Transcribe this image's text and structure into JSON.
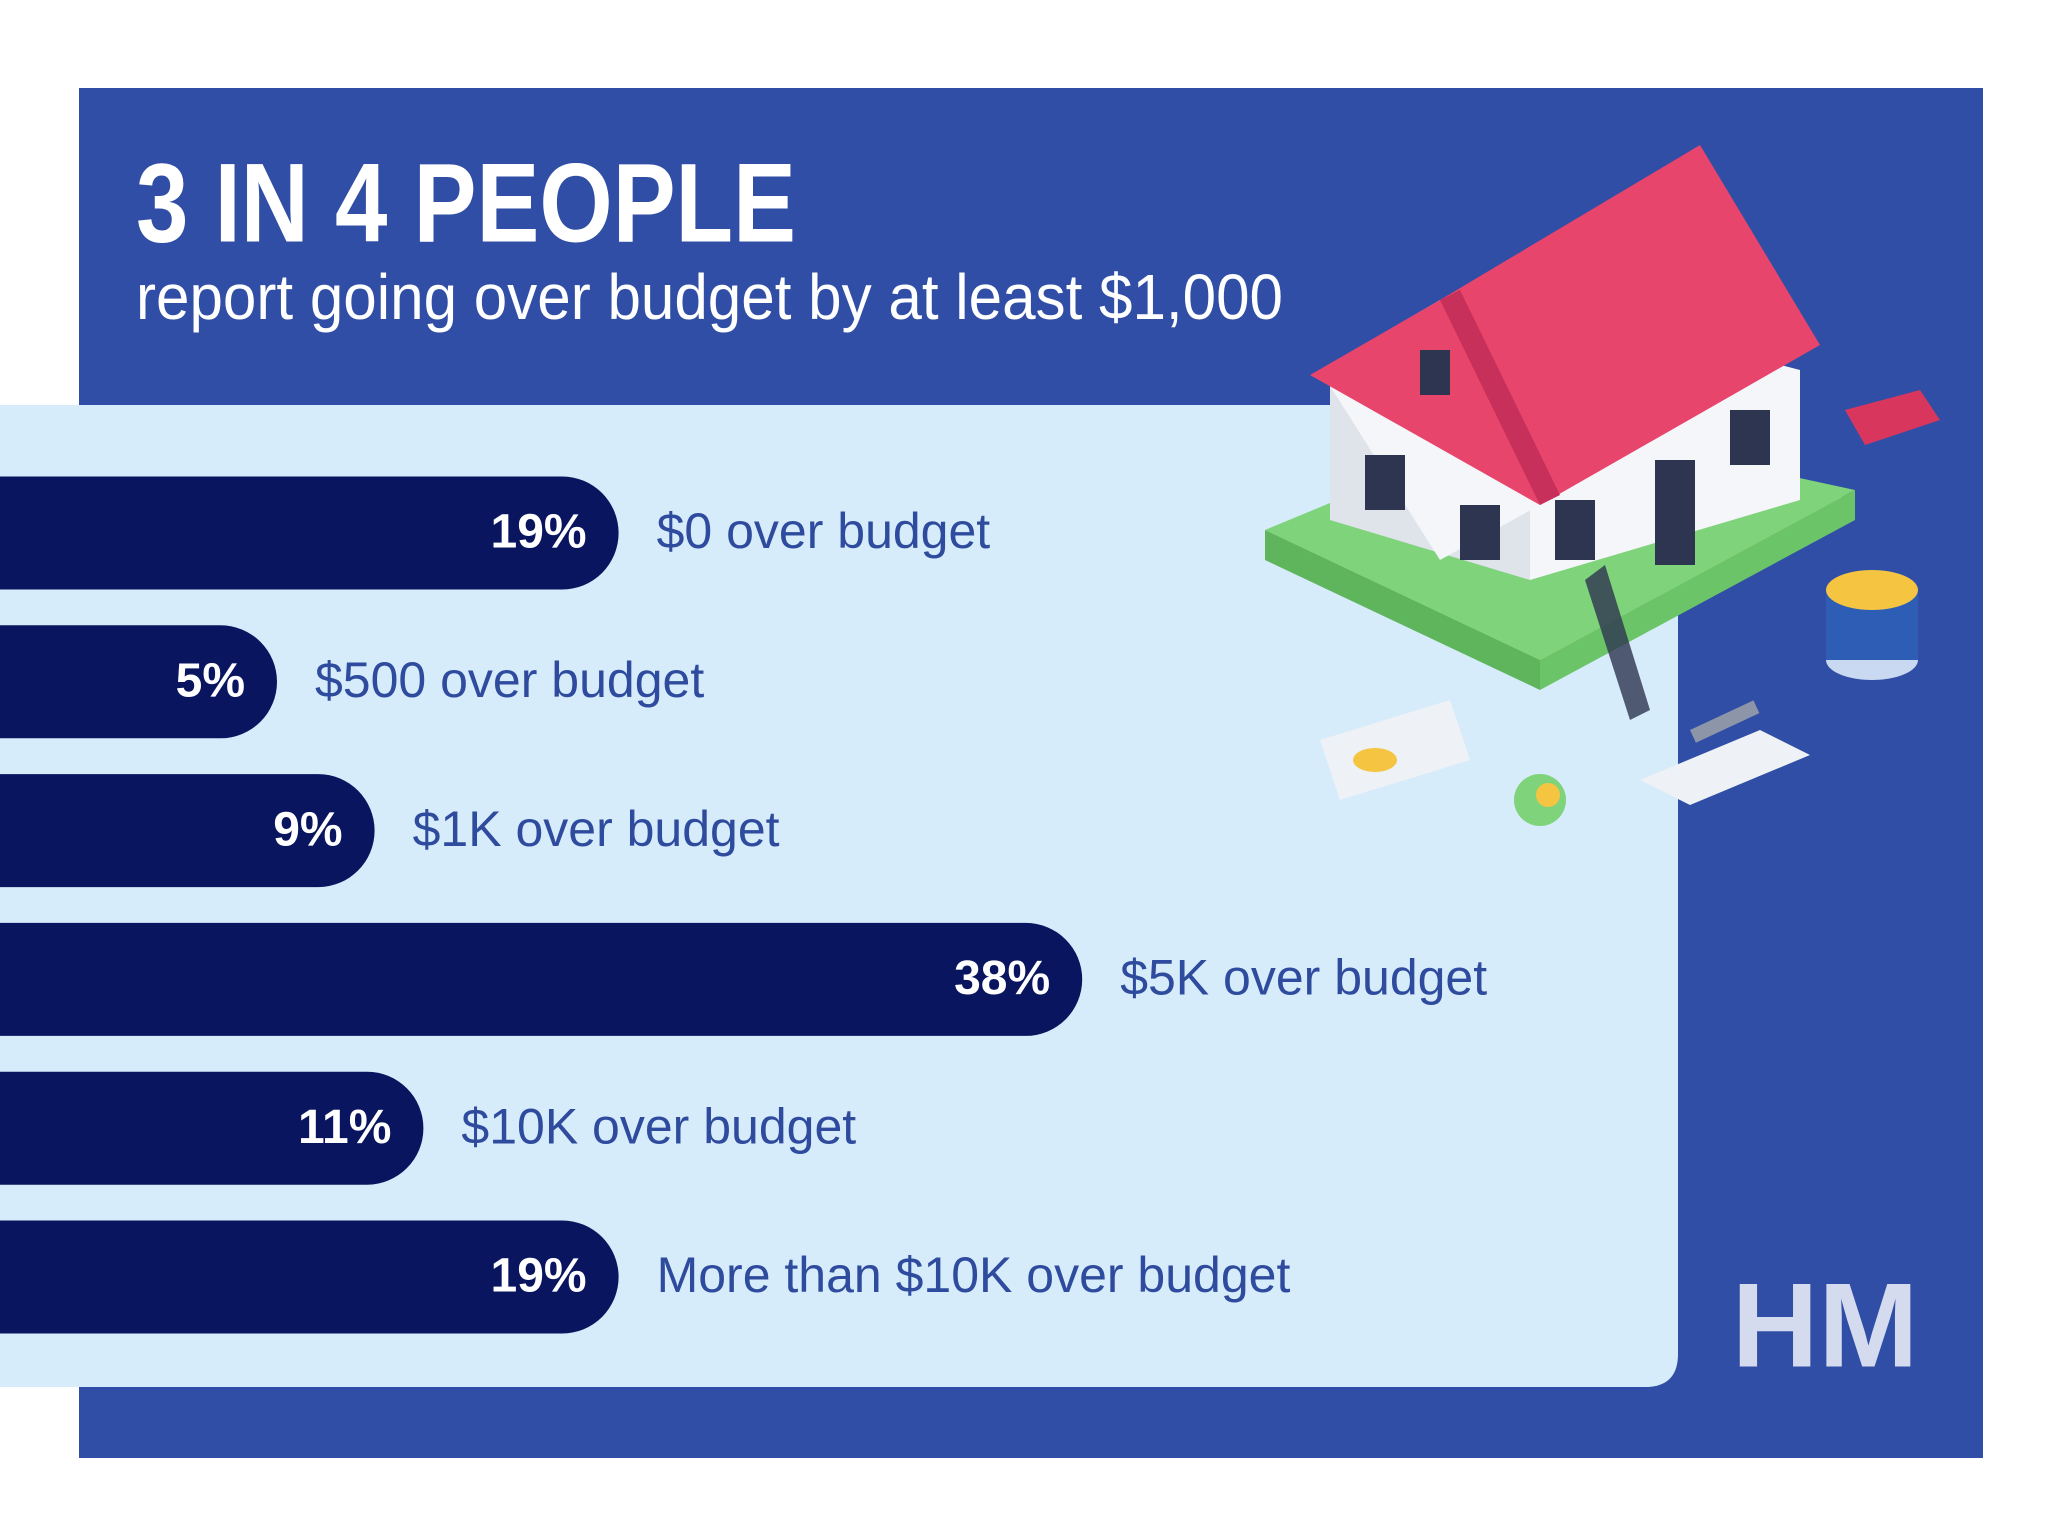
{
  "chart_data": {
    "type": "bar",
    "title": "3 IN 4 PEOPLE",
    "subtitle": "report going over budget by at least $1,000",
    "categories": [
      "$0 over budget",
      "$500 over budget",
      "$1K over budget",
      "$5K over budget",
      "$10K over budget",
      "More than $10K over budget"
    ],
    "values": [
      19,
      5,
      9,
      38,
      11,
      19
    ],
    "value_labels": [
      "19%",
      "5%",
      "9%",
      "38%",
      "11%",
      "19%"
    ],
    "color": "#0a1560"
  },
  "logo": "HM"
}
